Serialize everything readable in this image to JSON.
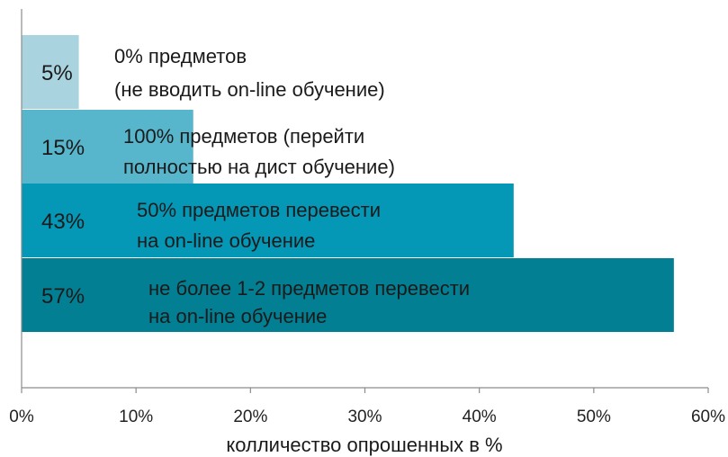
{
  "chart_data": {
    "type": "bar",
    "orientation": "horizontal",
    "xlabel": "колличество опрошенных в %",
    "ylabel": "",
    "xlim": [
      0,
      60
    ],
    "x_tick_labels": [
      "0%",
      "10%",
      "20%",
      "30%",
      "40%",
      "50%",
      "60%"
    ],
    "x_tick_values": [
      0,
      10,
      20,
      30,
      40,
      50,
      60
    ],
    "grid": false,
    "bars": [
      {
        "value": 5,
        "value_label": "5%",
        "description": [
          "0% предметов",
          "(не вводить on-line обучение)"
        ],
        "color": "#a9d3df"
      },
      {
        "value": 15,
        "value_label": "15%",
        "description": [
          "100% предметов (перейти",
          " полностью на дист обучение)"
        ],
        "color": "#58b6cc"
      },
      {
        "value": 43,
        "value_label": "43%",
        "description": [
          "50% предметов перевести",
          "на on-line обучение"
        ],
        "color": "#0497b6"
      },
      {
        "value": 57,
        "value_label": "57%",
        "description": [
          "не более 1-2 предметов перевести",
          "на on-line обучение"
        ],
        "color": "#037f93"
      }
    ]
  }
}
